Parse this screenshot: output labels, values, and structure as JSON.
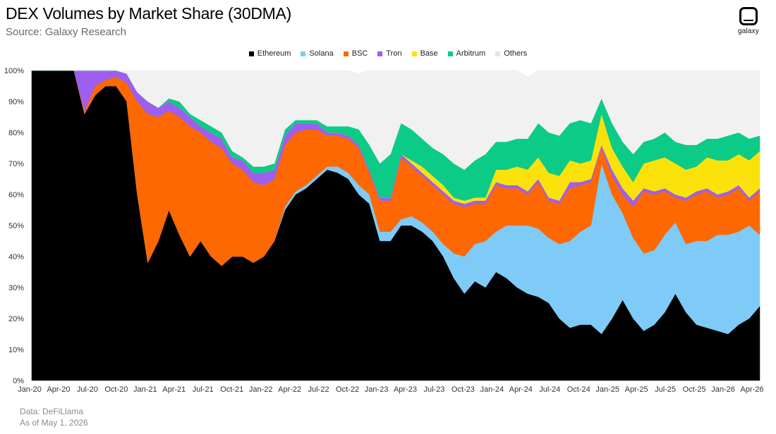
{
  "header": {
    "title": "DEX Volumes by Market Share (30DMA)",
    "subtitle": "Source: Galaxy Research"
  },
  "logo": {
    "text": "galaxy",
    "icon": "galaxy-logo-icon"
  },
  "footer": {
    "line1": "Data: DeFiLlama",
    "line2": "As of May 1, 2026"
  },
  "chart_data": {
    "type": "area",
    "stacked": true,
    "title": "DEX Volumes by Market Share (30DMA)",
    "ylim": [
      0,
      100
    ],
    "y_ticks": [
      "0%",
      "10%",
      "20%",
      "30%",
      "40%",
      "50%",
      "60%",
      "70%",
      "80%",
      "90%",
      "100%"
    ],
    "x_ticks": [
      "Jan-20",
      "Apr-20",
      "Jul-20",
      "Oct-20",
      "Jan-21",
      "Apr-21",
      "Jul-21",
      "Oct-21",
      "Jan-22",
      "Apr-22",
      "Jul-22",
      "Oct-22",
      "Jan-23",
      "Apr-23",
      "Jul-23",
      "Oct-23",
      "Jan-24",
      "Apr-24",
      "Jul-24",
      "Oct-24",
      "Jan-25",
      "Apr-25",
      "Jul-25",
      "Oct-25",
      "Jan-26",
      "Apr-26"
    ],
    "legend_position": "top-center",
    "grid": false,
    "x": [
      "Jan-20",
      "Mar-20",
      "May-20",
      "Jul-20",
      "Sep-20",
      "Oct-20",
      "Nov-20",
      "Jan-21",
      "Feb-21",
      "Mar-21",
      "Apr-21",
      "May-21",
      "Jun-21",
      "Jul-21",
      "Aug-21",
      "Sep-21",
      "Oct-21",
      "Nov-21",
      "Dec-21",
      "Jan-22",
      "Feb-22",
      "Mar-22",
      "Apr-22",
      "May-22",
      "Jun-22",
      "Jul-22",
      "Aug-22",
      "Oct-22",
      "Nov-22",
      "Dec-22",
      "Jan-23",
      "Feb-23",
      "Mar-23",
      "Apr-23",
      "May-23",
      "Jul-23",
      "Aug-23",
      "Sep-23",
      "Oct-23",
      "Nov-23",
      "Dec-23",
      "Jan-24",
      "Feb-24",
      "Mar-24",
      "Apr-24",
      "May-24",
      "Jun-24",
      "Jul-24",
      "Aug-24",
      "Sep-24",
      "Oct-24",
      "Nov-24",
      "Dec-24",
      "Jan-25",
      "Feb-25",
      "Mar-25",
      "Apr-25",
      "May-25",
      "Jun-25",
      "Jul-25",
      "Aug-25",
      "Sep-25",
      "Oct-25",
      "Nov-25",
      "Dec-25",
      "Jan-26",
      "Feb-26",
      "Mar-26",
      "Apr-26",
      "May-26"
    ],
    "series": [
      {
        "name": "Ethereum",
        "color": "#000000",
        "values": [
          100,
          100,
          100,
          100,
          100,
          86,
          92,
          95,
          95,
          90,
          60,
          38,
          45,
          55,
          47,
          40,
          45,
          40,
          37,
          40,
          40,
          38,
          40,
          45,
          55,
          60,
          62,
          65,
          68,
          67,
          65,
          60,
          57,
          45,
          45,
          50,
          50,
          48,
          45,
          40,
          33,
          28,
          32,
          30,
          35,
          33,
          30,
          28,
          27,
          25,
          20,
          17,
          18,
          18,
          15,
          20,
          26,
          20,
          16,
          18,
          22,
          28,
          22,
          18,
          17,
          16,
          15,
          18,
          20,
          24
        ]
      },
      {
        "name": "Solana",
        "color": "#7ecbf8",
        "values": [
          0,
          0,
          0,
          0,
          0,
          0,
          0,
          0,
          0,
          0,
          0,
          0,
          0,
          0,
          0,
          0,
          0,
          0,
          0,
          0,
          0,
          0,
          0,
          0,
          1,
          1,
          1,
          1,
          1,
          2,
          2,
          3,
          3,
          3,
          3,
          2,
          3,
          3,
          3,
          4,
          8,
          12,
          12,
          15,
          13,
          17,
          20,
          22,
          22,
          21,
          24,
          28,
          30,
          32,
          55,
          40,
          28,
          26,
          25,
          24,
          25,
          23,
          22,
          27,
          28,
          31,
          32,
          30,
          30,
          23
        ]
      },
      {
        "name": "BSC",
        "color": "#fd6802",
        "values": [
          0,
          0,
          0,
          0,
          0,
          1,
          3,
          2,
          3,
          6,
          30,
          48,
          40,
          32,
          38,
          42,
          35,
          37,
          38,
          30,
          28,
          26,
          23,
          20,
          20,
          19,
          18,
          15,
          10,
          10,
          11,
          12,
          7,
          10,
          10,
          20,
          16,
          15,
          15,
          16,
          16,
          16,
          13,
          12,
          15,
          12,
          12,
          10,
          15,
          12,
          13,
          17,
          15,
          14,
          5,
          6,
          6,
          10,
          20,
          18,
          14,
          8,
          14,
          15,
          16,
          12,
          13,
          14,
          8,
          14
        ]
      },
      {
        "name": "Tron",
        "color": "#9c5ff0",
        "values": [
          0,
          0,
          0,
          0,
          0,
          13,
          5,
          3,
          2,
          3,
          3,
          4,
          3,
          3,
          3,
          3,
          2,
          3,
          3,
          2,
          3,
          3,
          4,
          3,
          3,
          3,
          2,
          2,
          1,
          1,
          1,
          1,
          1,
          1,
          1,
          1,
          1,
          1,
          1,
          1,
          1,
          1,
          1,
          1,
          1,
          1,
          1,
          1,
          1,
          1,
          1,
          2,
          1,
          1,
          1,
          2,
          2,
          2,
          1,
          1,
          1,
          1,
          1,
          1,
          1,
          1,
          1,
          1,
          1,
          1
        ]
      },
      {
        "name": "Base",
        "color": "#fbe10a",
        "values": [
          0,
          0,
          0,
          0,
          0,
          0,
          0,
          0,
          0,
          0,
          0,
          0,
          0,
          0,
          0,
          0,
          0,
          0,
          0,
          0,
          0,
          0,
          0,
          0,
          0,
          0,
          0,
          0,
          0,
          0,
          0,
          0,
          0,
          0,
          0,
          0,
          1,
          2,
          2,
          2,
          1,
          1,
          1,
          1,
          4,
          5,
          6,
          7,
          7,
          8,
          8,
          7,
          6,
          6,
          10,
          7,
          7,
          6,
          8,
          10,
          10,
          10,
          9,
          8,
          10,
          11,
          10,
          10,
          12,
          12
        ]
      },
      {
        "name": "Arbitrum",
        "color": "#0ccb86",
        "values": [
          0,
          0,
          0,
          0,
          0,
          0,
          0,
          0,
          0,
          0,
          0,
          0,
          0,
          1,
          2,
          1,
          2,
          2,
          2,
          2,
          1,
          2,
          2,
          2,
          2,
          1,
          1,
          1,
          2,
          2,
          3,
          5,
          8,
          11,
          14,
          10,
          10,
          9,
          9,
          10,
          11,
          10,
          12,
          14,
          9,
          9,
          9,
          10,
          11,
          13,
          13,
          12,
          14,
          12,
          5,
          8,
          8,
          9,
          7,
          7,
          8,
          7,
          8,
          7,
          6,
          7,
          8,
          7,
          7,
          5
        ]
      },
      {
        "name": "Others",
        "color": "#f1f1f1",
        "values": [
          0,
          0,
          0,
          0,
          0,
          0,
          0,
          0,
          0,
          1,
          7,
          10,
          12,
          9,
          10,
          14,
          16,
          18,
          20,
          26,
          28,
          31,
          31,
          30,
          19,
          16,
          16,
          16,
          18,
          18,
          18,
          18,
          24,
          30,
          27,
          17,
          19,
          22,
          25,
          27,
          30,
          32,
          29,
          27,
          23,
          23,
          22,
          20,
          17,
          20,
          21,
          17,
          16,
          17,
          9,
          17,
          23,
          27,
          23,
          22,
          20,
          23,
          24,
          24,
          22,
          22,
          21,
          20,
          22,
          21
        ]
      }
    ]
  }
}
